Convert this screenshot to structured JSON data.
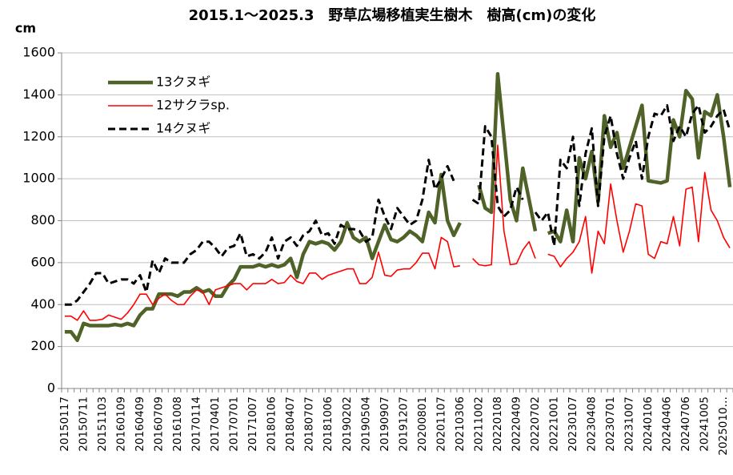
{
  "chart_data": {
    "type": "line",
    "title": "2015.1～2025.3　野草広場移植実生樹木　樹高(cm)の変化",
    "y_label": "cm",
    "categories": [
      "20150117",
      null,
      null,
      "20150711",
      null,
      null,
      "20151103",
      null,
      null,
      "20160109",
      null,
      null,
      "20160409",
      null,
      null,
      "20160709",
      null,
      null,
      "20161008",
      null,
      null,
      "20170114",
      null,
      null,
      "20170401",
      null,
      null,
      "20170701",
      null,
      null,
      "20171007",
      null,
      null,
      "20180106",
      null,
      null,
      "20180407",
      null,
      null,
      "20180707",
      null,
      null,
      "20181006",
      null,
      null,
      "20190202",
      null,
      null,
      "20190504",
      null,
      null,
      "20190907",
      null,
      null,
      "20191207",
      null,
      null,
      "20200801",
      null,
      null,
      "20201107",
      null,
      null,
      "20210306",
      null,
      null,
      "20211002",
      null,
      null,
      "20220108",
      null,
      null,
      "20220409",
      null,
      null,
      "20220702",
      null,
      null,
      "20221001",
      null,
      null,
      "20230107",
      null,
      null,
      "20230408",
      null,
      null,
      "20230701",
      null,
      null,
      "20231007",
      null,
      null,
      "20240106",
      null,
      null,
      "20240406",
      null,
      null,
      "20240706",
      null,
      null,
      "20241005",
      null,
      null,
      "2025010…",
      null
    ],
    "series": [
      {
        "name": "13クヌギ",
        "color": "#4f6228",
        "width": 4.5,
        "dash": false,
        "values": [
          270,
          270,
          230,
          310,
          300,
          300,
          300,
          300,
          305,
          300,
          310,
          300,
          350,
          380,
          380,
          450,
          450,
          450,
          440,
          460,
          460,
          480,
          460,
          470,
          440,
          440,
          490,
          520,
          580,
          580,
          580,
          590,
          580,
          590,
          580,
          590,
          620,
          530,
          640,
          700,
          690,
          700,
          690,
          660,
          700,
          790,
          720,
          700,
          720,
          620,
          700,
          780,
          710,
          700,
          720,
          750,
          730,
          700,
          840,
          790,
          1020,
          800,
          730,
          790,
          null,
          null,
          970,
          860,
          840,
          1500,
          1200,
          900,
          800,
          1050,
          900,
          750,
          null,
          740,
          750,
          700,
          850,
          700,
          1100,
          1000,
          1130,
          890,
          1300,
          1150,
          1220,
          1050,
          1150,
          1250,
          1350,
          990,
          985,
          980,
          990,
          1280,
          1200,
          1420,
          1380,
          1100,
          1320,
          1300,
          1400,
          1200,
          960
        ]
      },
      {
        "name": "12サクラsp.",
        "color": "#ff0000",
        "width": 1.6,
        "dash": false,
        "values": [
          345,
          345,
          325,
          370,
          325,
          325,
          330,
          350,
          340,
          330,
          360,
          400,
          450,
          450,
          400,
          430,
          450,
          420,
          400,
          400,
          440,
          470,
          460,
          400,
          470,
          480,
          490,
          500,
          500,
          470,
          500,
          500,
          500,
          520,
          500,
          505,
          540,
          510,
          500,
          550,
          550,
          520,
          540,
          550,
          560,
          570,
          570,
          500,
          500,
          530,
          650,
          540,
          535,
          565,
          570,
          570,
          600,
          645,
          645,
          570,
          720,
          700,
          580,
          585,
          null,
          620,
          590,
          585,
          590,
          1160,
          750,
          590,
          595,
          660,
          700,
          620,
          null,
          640,
          630,
          580,
          620,
          650,
          700,
          820,
          550,
          750,
          690,
          975,
          800,
          650,
          750,
          880,
          870,
          640,
          620,
          700,
          690,
          820,
          680,
          950,
          960,
          700,
          1030,
          850,
          800,
          720,
          670
        ]
      },
      {
        "name": "14クヌギ",
        "color": "#000000",
        "width": 3,
        "dash": true,
        "values": [
          400,
          400,
          420,
          460,
          500,
          550,
          550,
          500,
          510,
          520,
          520,
          500,
          540,
          460,
          610,
          550,
          620,
          600,
          600,
          600,
          640,
          660,
          700,
          700,
          670,
          630,
          670,
          680,
          740,
          630,
          640,
          620,
          650,
          720,
          620,
          700,
          720,
          680,
          730,
          750,
          800,
          730,
          740,
          690,
          780,
          760,
          760,
          750,
          700,
          720,
          900,
          820,
          760,
          860,
          820,
          780,
          800,
          900,
          1090,
          950,
          1000,
          1060,
          990,
          null,
          null,
          900,
          880,
          1250,
          1200,
          870,
          820,
          850,
          960,
          900,
          null,
          840,
          800,
          840,
          680,
          1090,
          1050,
          1200,
          870,
          1120,
          1240,
          870,
          1200,
          1300,
          1120,
          1000,
          1100,
          1180,
          1000,
          1200,
          1310,
          1300,
          1350,
          1180,
          1250,
          1200,
          1310,
          1350,
          1220,
          1250,
          1300,
          1330,
          1230
        ]
      }
    ],
    "ylim": [
      0,
      1600
    ],
    "yticks": [
      0,
      200,
      400,
      600,
      800,
      1000,
      1200,
      1400,
      1600
    ],
    "grid": true,
    "legend": "upper left"
  }
}
